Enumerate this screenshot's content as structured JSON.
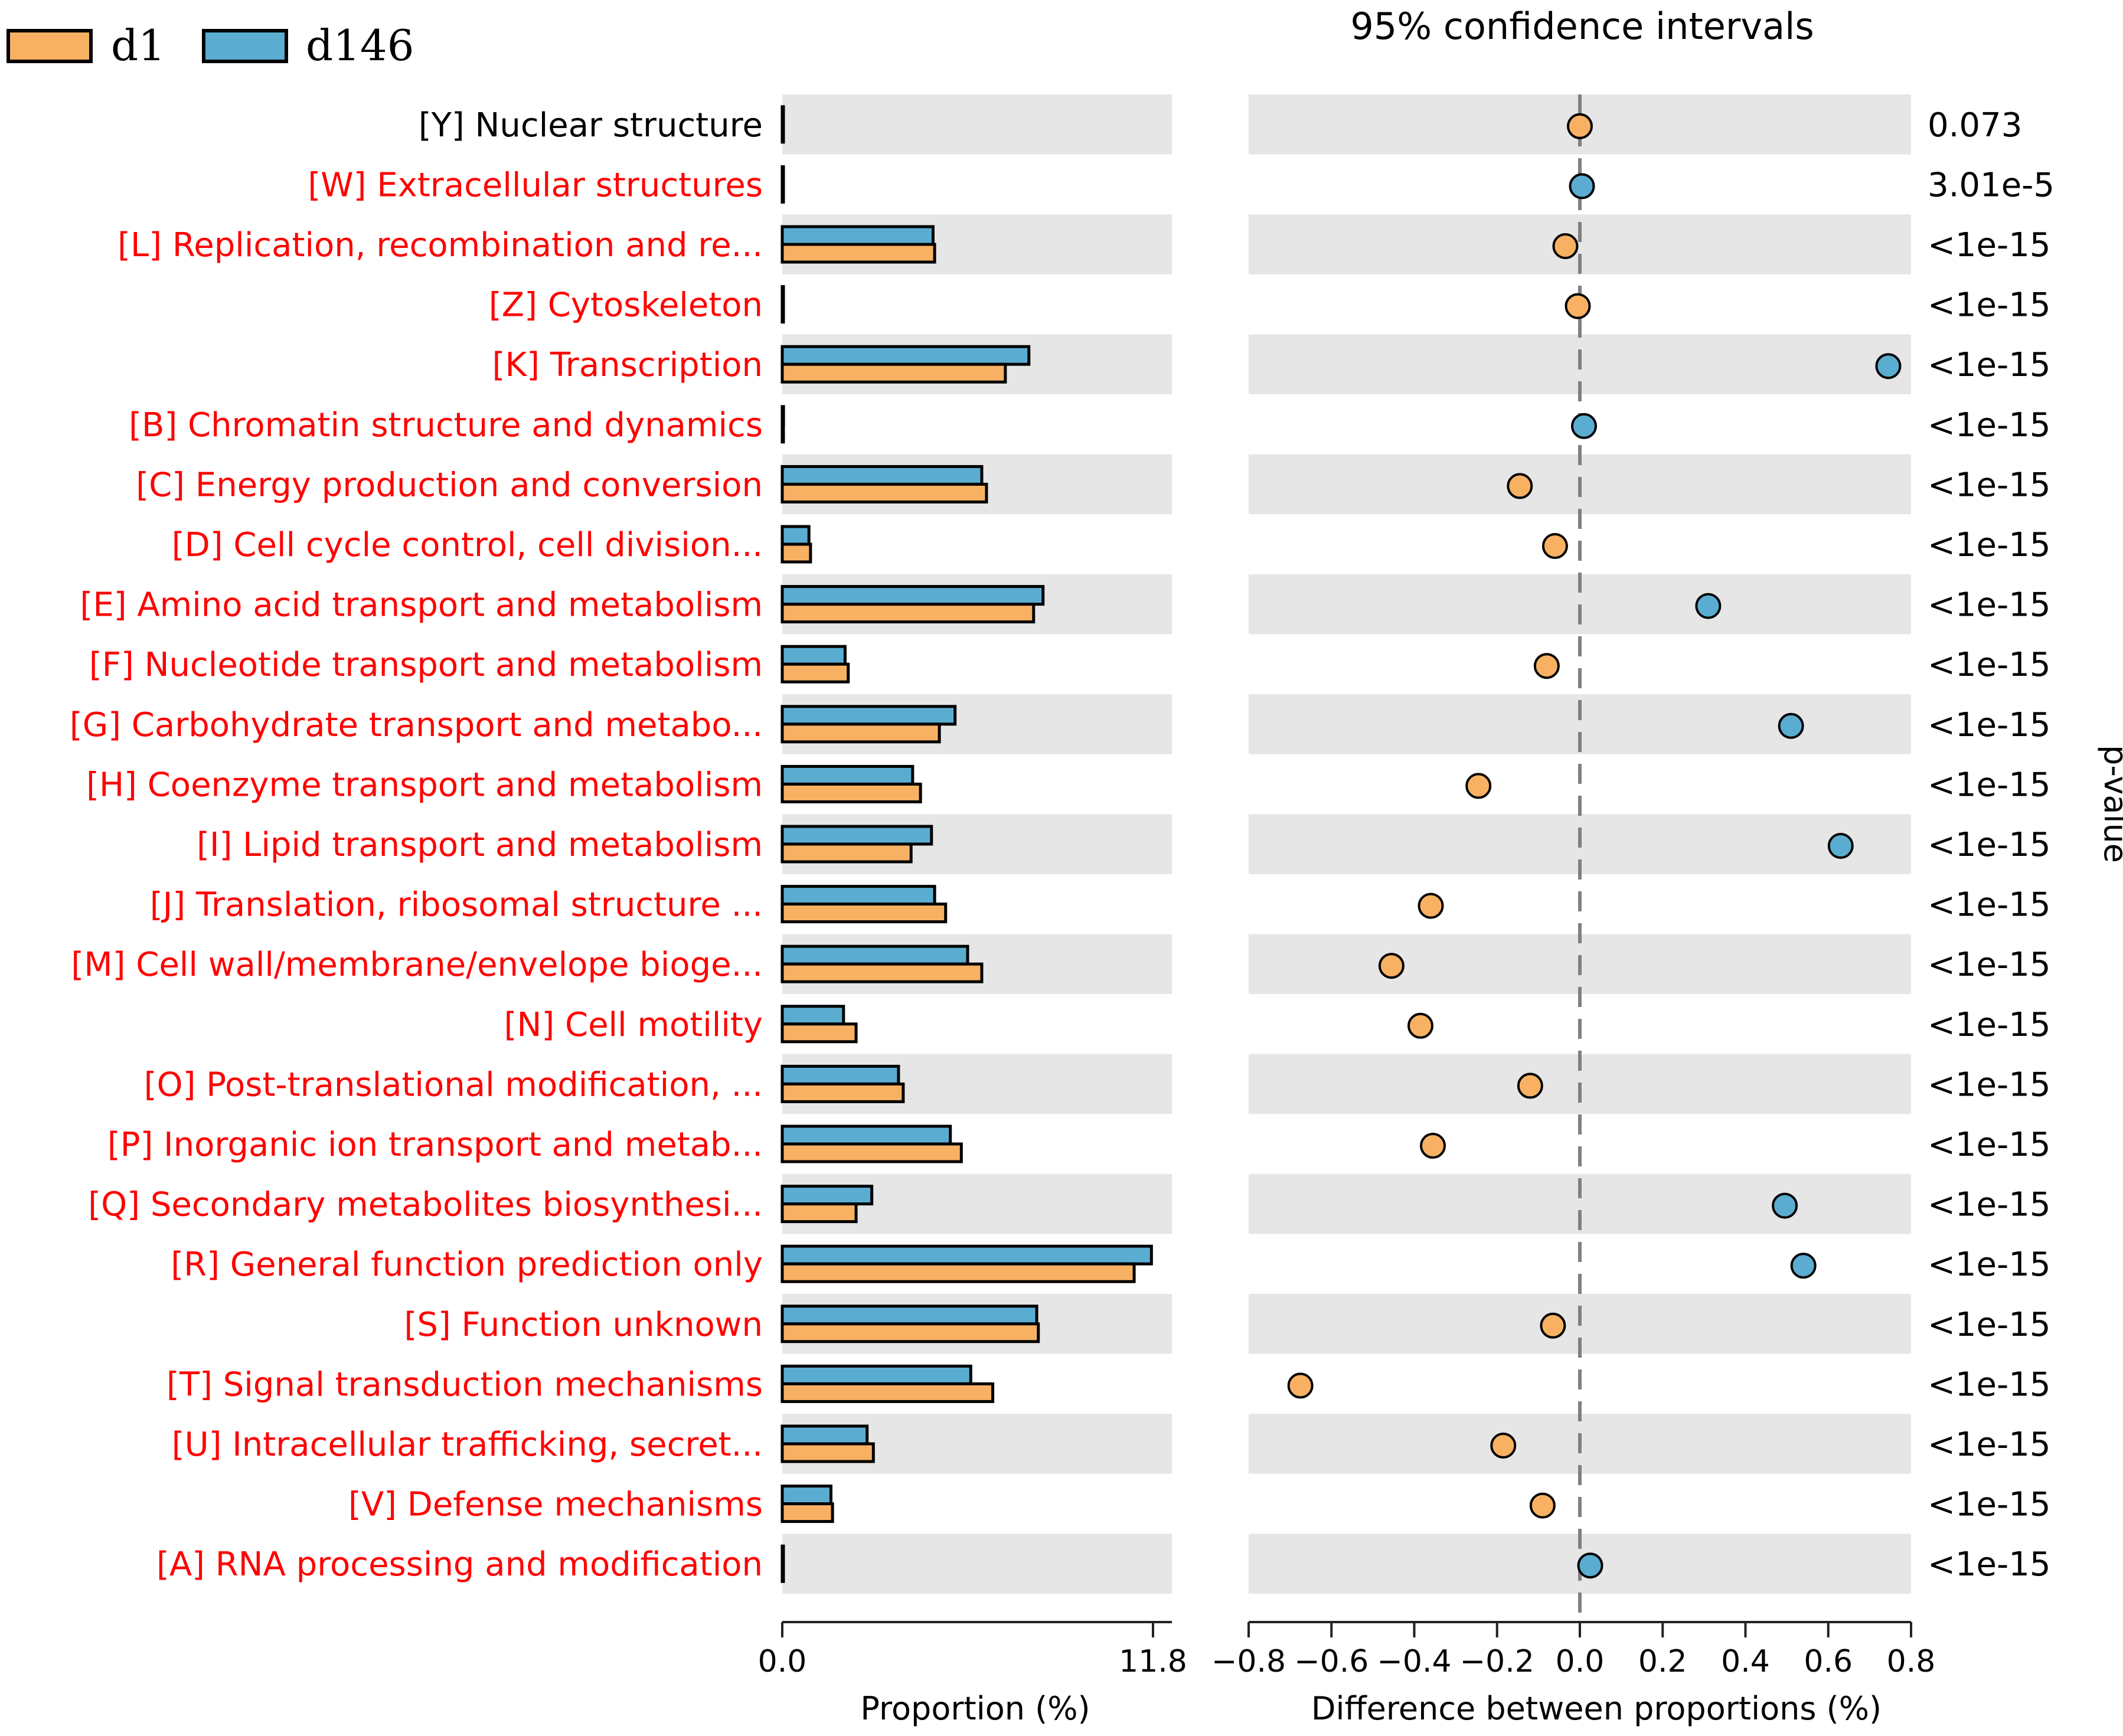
{
  "chart_data": {
    "type": "extended-error-bar",
    "legend": [
      {
        "name": "d1",
        "color": "#f8b163"
      },
      {
        "name": "d146",
        "color": "#5aadd1"
      }
    ],
    "title": "95% confidence intervals",
    "bar_xlabel": "Proportion (%)",
    "bar_xlim": [
      0.0,
      11.8
    ],
    "bar_xticks": [
      "0.0",
      "11.8"
    ],
    "diff_xlabel": "Difference between proportions (%)",
    "diff_xlim": [
      -0.8,
      0.8
    ],
    "diff_xticks": [
      "−0.8",
      "−0.6",
      "−0.4",
      "−0.2",
      "0.0",
      "0.2",
      "0.4",
      "0.6",
      "0.8"
    ],
    "pvalue_label": "p-value",
    "colors": {
      "label_sig": "#ff0000",
      "label_nonsig": "#000000",
      "band": "#e6e6e6",
      "edge": "#000000"
    },
    "categories": [
      {
        "label": "[Y] Nuclear structure",
        "significant": false,
        "d1": 0.02,
        "d146": 0.02,
        "diff": 0.0,
        "dot": "d1",
        "pvalue": "0.073"
      },
      {
        "label": "[W] Extracellular structures",
        "significant": true,
        "d1": 0.01,
        "d146": 0.01,
        "diff": 0.005,
        "dot": "d146",
        "pvalue": "3.01e-5"
      },
      {
        "label": "[L] Replication, recombination and re...",
        "significant": true,
        "d1": 4.85,
        "d146": 4.8,
        "diff": -0.035,
        "dot": "d1",
        "pvalue": "<1e-15"
      },
      {
        "label": "[Z] Cytoskeleton",
        "significant": true,
        "d1": 0.01,
        "d146": 0.01,
        "diff": -0.005,
        "dot": "d1",
        "pvalue": "<1e-15"
      },
      {
        "label": "[K] Transcription",
        "significant": true,
        "d1": 7.1,
        "d146": 7.85,
        "diff": 0.745,
        "dot": "d146",
        "pvalue": "<1e-15"
      },
      {
        "label": "[B] Chromatin structure and dynamics",
        "significant": true,
        "d1": 0.03,
        "d146": 0.04,
        "diff": 0.01,
        "dot": "d146",
        "pvalue": "<1e-15"
      },
      {
        "label": "[C] Energy production and conversion",
        "significant": true,
        "d1": 6.5,
        "d146": 6.35,
        "diff": -0.145,
        "dot": "d1",
        "pvalue": "<1e-15"
      },
      {
        "label": "[D] Cell cycle control, cell division...",
        "significant": true,
        "d1": 0.9,
        "d146": 0.85,
        "diff": -0.06,
        "dot": "d1",
        "pvalue": "<1e-15"
      },
      {
        "label": "[E] Amino acid transport and metabolism",
        "significant": true,
        "d1": 8.0,
        "d146": 8.3,
        "diff": 0.31,
        "dot": "d146",
        "pvalue": "<1e-15"
      },
      {
        "label": "[F] Nucleotide transport and metabolism",
        "significant": true,
        "d1": 2.1,
        "d146": 2.0,
        "diff": -0.08,
        "dot": "d1",
        "pvalue": "<1e-15"
      },
      {
        "label": "[G] Carbohydrate transport and metabo...",
        "significant": true,
        "d1": 5.0,
        "d146": 5.5,
        "diff": 0.51,
        "dot": "d146",
        "pvalue": "<1e-15"
      },
      {
        "label": "[H] Coenzyme transport and metabolism",
        "significant": true,
        "d1": 4.4,
        "d146": 4.15,
        "diff": -0.245,
        "dot": "d1",
        "pvalue": "<1e-15"
      },
      {
        "label": "[I] Lipid transport and metabolism",
        "significant": true,
        "d1": 4.1,
        "d146": 4.75,
        "diff": 0.63,
        "dot": "d146",
        "pvalue": "<1e-15"
      },
      {
        "label": "[J] Translation, ribosomal structure ...",
        "significant": true,
        "d1": 5.2,
        "d146": 4.85,
        "diff": -0.36,
        "dot": "d1",
        "pvalue": "<1e-15"
      },
      {
        "label": "[M] Cell wall/membrane/envelope bioge...",
        "significant": true,
        "d1": 6.35,
        "d146": 5.9,
        "diff": -0.455,
        "dot": "d1",
        "pvalue": "<1e-15"
      },
      {
        "label": "[N] Cell motility",
        "significant": true,
        "d1": 2.35,
        "d146": 1.95,
        "diff": -0.385,
        "dot": "d1",
        "pvalue": "<1e-15"
      },
      {
        "label": "[O] Post-translational modification, ...",
        "significant": true,
        "d1": 3.85,
        "d146": 3.7,
        "diff": -0.12,
        "dot": "d1",
        "pvalue": "<1e-15"
      },
      {
        "label": "[P] Inorganic ion transport and metab...",
        "significant": true,
        "d1": 5.7,
        "d146": 5.35,
        "diff": -0.355,
        "dot": "d1",
        "pvalue": "<1e-15"
      },
      {
        "label": "[Q] Secondary metabolites biosynthesi...",
        "significant": true,
        "d1": 2.35,
        "d146": 2.85,
        "diff": 0.495,
        "dot": "d146",
        "pvalue": "<1e-15"
      },
      {
        "label": "[R] General function prediction only",
        "significant": true,
        "d1": 11.2,
        "d146": 11.75,
        "diff": 0.54,
        "dot": "d146",
        "pvalue": "<1e-15"
      },
      {
        "label": "[S] Function unknown",
        "significant": true,
        "d1": 8.15,
        "d146": 8.1,
        "diff": -0.065,
        "dot": "d1",
        "pvalue": "<1e-15"
      },
      {
        "label": "[T] Signal transduction mechanisms",
        "significant": true,
        "d1": 6.7,
        "d146": 6.0,
        "diff": -0.675,
        "dot": "d1",
        "pvalue": "<1e-15"
      },
      {
        "label": "[U] Intracellular trafficking, secret...",
        "significant": true,
        "d1": 2.9,
        "d146": 2.7,
        "diff": -0.185,
        "dot": "d1",
        "pvalue": "<1e-15"
      },
      {
        "label": "[V] Defense mechanisms",
        "significant": true,
        "d1": 1.6,
        "d146": 1.55,
        "diff": -0.09,
        "dot": "d1",
        "pvalue": "<1e-15"
      },
      {
        "label": "[A] RNA processing and modification",
        "significant": true,
        "d1": 0.02,
        "d146": 0.02,
        "diff": 0.025,
        "dot": "d146",
        "pvalue": "<1e-15"
      }
    ]
  }
}
